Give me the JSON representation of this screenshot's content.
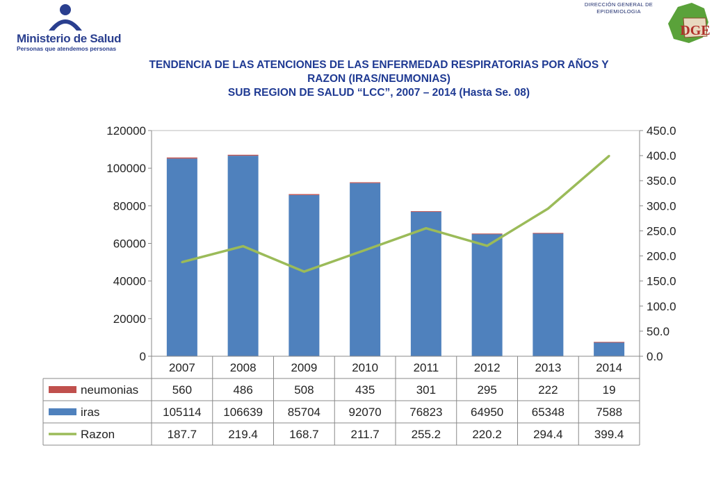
{
  "header": {
    "org_name": "Ministerio de Salud",
    "org_tagline": "Personas que atendemos personas",
    "agency_line1": "DIRECCIÓN GENERAL DE",
    "agency_line2": "EPIDEMIOLOGIA",
    "agency_logo_text": "DGE",
    "title_line1": "TENDENCIA DE LAS ATENCIONES DE LAS ENFERMEDAD RESPIRATORIAS POR AÑOS Y",
    "title_line2": "RAZON (IRAS/NEUMONIAS)",
    "title_line3": "SUB REGION DE SALUD “LCC”, 2007 – 2014 (Hasta Se. 08)"
  },
  "chart_data": {
    "type": "bar",
    "stacked": true,
    "categories": [
      "2007",
      "2008",
      "2009",
      "2010",
      "2011",
      "2012",
      "2013",
      "2014"
    ],
    "series": [
      {
        "name": "neumonias",
        "kind": "bar",
        "axis": "left",
        "color": "#c0504d",
        "values": [
          560,
          486,
          508,
          435,
          301,
          295,
          222,
          19
        ],
        "labels": [
          "560",
          "486",
          "508",
          "435",
          "301",
          "295",
          "222",
          "19"
        ]
      },
      {
        "name": "iras",
        "kind": "bar",
        "axis": "left",
        "color": "#4f81bd",
        "values": [
          105114,
          106639,
          85704,
          92070,
          76823,
          64950,
          65348,
          7588
        ],
        "labels": [
          "105114",
          "106639",
          "85704",
          "92070",
          "76823",
          "64950",
          "65348",
          "7588"
        ]
      },
      {
        "name": "Razon",
        "kind": "line",
        "axis": "right",
        "color": "#9bbb59",
        "values": [
          187.7,
          219.4,
          168.7,
          211.7,
          255.2,
          220.2,
          294.4,
          399.4
        ],
        "labels": [
          "187.7",
          "219.4",
          "168.7",
          "211.7",
          "255.2",
          "220.2",
          "294.4",
          "399.4"
        ]
      }
    ],
    "y_left": {
      "min": 0,
      "max": 120000,
      "ticks": [
        "0",
        "20000",
        "40000",
        "60000",
        "80000",
        "100000",
        "120000"
      ]
    },
    "y_right": {
      "min": 0,
      "max": 450,
      "ticks": [
        "0.0",
        "50.0",
        "100.0",
        "150.0",
        "200.0",
        "250.0",
        "300.0",
        "350.0",
        "400.0",
        "450.0"
      ]
    },
    "grid": false,
    "legend": "data-table"
  }
}
